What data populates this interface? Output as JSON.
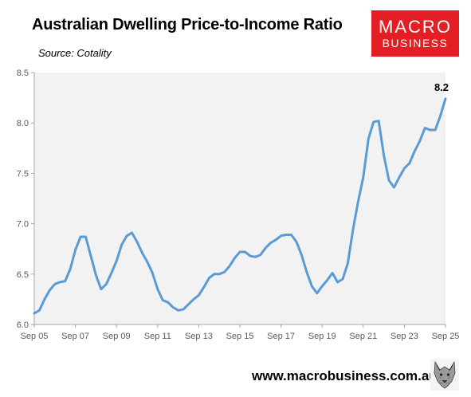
{
  "header": {
    "title": "Australian Dwelling Price-to-Income Ratio",
    "source": "Source: Cotality"
  },
  "logo": {
    "line1": "MACRO",
    "line2": "BUSINESS",
    "color": "#e31e24"
  },
  "footer": {
    "url": "www.macrobusiness.com.au",
    "mascot_icon": "wolf-mascot-icon"
  },
  "chart_data": {
    "type": "line",
    "title": "Australian Dwelling Price-to-Income Ratio",
    "xlabel": "",
    "ylabel": "",
    "x_tick_labels": [
      "Sep 05",
      "Sep 07",
      "Sep 09",
      "Sep 11",
      "Sep 13",
      "Sep 15",
      "Sep 17",
      "Sep 19",
      "Sep 21",
      "Sep 23",
      "Sep 25"
    ],
    "y_tick_labels": [
      "6.0",
      "6.5",
      "7.0",
      "7.5",
      "8.0",
      "8.5"
    ],
    "ylim": [
      6.0,
      8.5
    ],
    "grid": false,
    "plot_background": "#f2f2f2",
    "line_color": "#5b9bd5",
    "annotation": {
      "text": "8.2",
      "at": "last point"
    },
    "series": [
      {
        "x": [
          "Sep 05",
          "Dec 05",
          "Mar 06",
          "Jun 06",
          "Sep 06",
          "Dec 06",
          "Mar 07",
          "Jun 07",
          "Sep 07",
          "Dec 07",
          "Mar 08",
          "Jun 08",
          "Sep 08",
          "Dec 08",
          "Mar 09",
          "Jun 09",
          "Sep 09",
          "Dec 09",
          "Mar 10",
          "Jun 10",
          "Sep 10",
          "Dec 10",
          "Mar 11",
          "Jun 11",
          "Sep 11",
          "Dec 11",
          "Mar 12",
          "Jun 12",
          "Sep 12",
          "Dec 12",
          "Mar 13",
          "Jun 13",
          "Sep 13",
          "Dec 13",
          "Mar 14",
          "Jun 14",
          "Sep 14",
          "Dec 14",
          "Mar 15",
          "Jun 15",
          "Sep 15",
          "Dec 15",
          "Mar 16",
          "Jun 16",
          "Sep 16",
          "Dec 16",
          "Mar 17",
          "Jun 17",
          "Sep 17",
          "Dec 17",
          "Mar 18",
          "Jun 18",
          "Sep 18",
          "Dec 18",
          "Mar 19",
          "Jun 19",
          "Sep 19",
          "Dec 19",
          "Mar 20",
          "Jun 20",
          "Sep 20",
          "Dec 20",
          "Mar 21",
          "Jun 21",
          "Sep 21",
          "Dec 21",
          "Mar 22",
          "Jun 22",
          "Sep 22",
          "Dec 22",
          "Mar 23",
          "Jun 23",
          "Sep 23",
          "Dec 23",
          "Mar 24",
          "Jun 24",
          "Sep 24",
          "Dec 24",
          "Mar 25",
          "Jun 25",
          "Sep 25"
        ],
        "values": [
          6.11,
          6.14,
          6.25,
          6.34,
          6.4,
          6.42,
          6.43,
          6.55,
          6.74,
          6.87,
          6.87,
          6.68,
          6.49,
          6.35,
          6.4,
          6.51,
          6.63,
          6.79,
          6.88,
          6.91,
          6.82,
          6.71,
          6.62,
          6.51,
          6.35,
          6.24,
          6.22,
          6.17,
          6.14,
          6.15,
          6.2,
          6.25,
          6.29,
          6.37,
          6.46,
          6.5,
          6.5,
          6.52,
          6.58,
          6.66,
          6.72,
          6.72,
          6.68,
          6.67,
          6.69,
          6.76,
          6.81,
          6.84,
          6.88,
          6.89,
          6.89,
          6.82,
          6.69,
          6.52,
          6.38,
          6.31,
          6.38,
          6.44,
          6.51,
          6.42,
          6.45,
          6.61,
          6.94,
          7.22,
          7.46,
          7.84,
          8.01,
          8.02,
          7.68,
          7.43,
          7.36,
          7.46,
          7.55,
          7.6,
          7.72,
          7.82,
          7.95,
          7.93,
          7.93,
          8.07,
          8.24
        ]
      }
    ]
  }
}
